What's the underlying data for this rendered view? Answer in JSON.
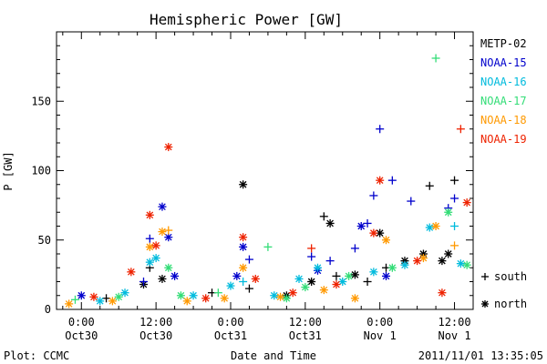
{
  "chart_data": {
    "type": "scatter",
    "title": "Hemispheric Power [GW]",
    "ylabel": "P [GW]",
    "xlabel": "Date and Time",
    "ylim": [
      0,
      200
    ],
    "y_ticks": [
      "0",
      "50",
      "100",
      "150"
    ],
    "x_ticks": [
      {
        "x": 24,
        "line1": "0:00",
        "line2": "Oct30"
      },
      {
        "x": 36,
        "line1": "12:00",
        "line2": "Oct30"
      },
      {
        "x": 48,
        "line1": "0:00",
        "line2": "Oct31"
      },
      {
        "x": 60,
        "line1": "12:00",
        "line2": "Oct31"
      },
      {
        "x": 72,
        "line1": "0:00",
        "line2": "Nov 1"
      },
      {
        "x": 84,
        "line1": "12:00",
        "line2": "Nov 1"
      }
    ],
    "x_unit": "hours since 2011-10-29 00:00",
    "xlim": [
      20,
      87
    ],
    "series": [
      {
        "name": "METP-02",
        "color": "#000000",
        "points": [
          {
            "x": 28,
            "y": 8,
            "m": "south"
          },
          {
            "x": 34,
            "y": 18,
            "m": "north"
          },
          {
            "x": 35,
            "y": 30,
            "m": "south"
          },
          {
            "x": 37,
            "y": 22,
            "m": "north"
          },
          {
            "x": 45,
            "y": 12,
            "m": "south"
          },
          {
            "x": 50,
            "y": 90,
            "m": "north"
          },
          {
            "x": 51,
            "y": 15,
            "m": "south"
          },
          {
            "x": 57,
            "y": 10,
            "m": "north"
          },
          {
            "x": 61,
            "y": 20,
            "m": "north"
          },
          {
            "x": 63,
            "y": 67,
            "m": "south"
          },
          {
            "x": 64,
            "y": 62,
            "m": "north"
          },
          {
            "x": 65,
            "y": 24,
            "m": "south"
          },
          {
            "x": 68,
            "y": 25,
            "m": "north"
          },
          {
            "x": 70,
            "y": 20,
            "m": "south"
          },
          {
            "x": 72,
            "y": 55,
            "m": "north"
          },
          {
            "x": 73,
            "y": 30,
            "m": "south"
          },
          {
            "x": 76,
            "y": 35,
            "m": "north"
          },
          {
            "x": 79,
            "y": 40,
            "m": "north"
          },
          {
            "x": 80,
            "y": 89,
            "m": "south"
          },
          {
            "x": 82,
            "y": 35,
            "m": "north"
          },
          {
            "x": 83,
            "y": 40,
            "m": "north"
          },
          {
            "x": 84,
            "y": 93,
            "m": "south"
          }
        ]
      },
      {
        "name": "NOAA-15",
        "color": "#0000cc",
        "points": [
          {
            "x": 24,
            "y": 10,
            "m": "north"
          },
          {
            "x": 34,
            "y": 20,
            "m": "south"
          },
          {
            "x": 35,
            "y": 51,
            "m": "south"
          },
          {
            "x": 37,
            "y": 74,
            "m": "north"
          },
          {
            "x": 38,
            "y": 52,
            "m": "north"
          },
          {
            "x": 39,
            "y": 24,
            "m": "north"
          },
          {
            "x": 49,
            "y": 24,
            "m": "north"
          },
          {
            "x": 50,
            "y": 45,
            "m": "north"
          },
          {
            "x": 51,
            "y": 36,
            "m": "south"
          },
          {
            "x": 61,
            "y": 38,
            "m": "south"
          },
          {
            "x": 62,
            "y": 28,
            "m": "north"
          },
          {
            "x": 64,
            "y": 35,
            "m": "south"
          },
          {
            "x": 68,
            "y": 44,
            "m": "south"
          },
          {
            "x": 69,
            "y": 60,
            "m": "north"
          },
          {
            "x": 70,
            "y": 62,
            "m": "south"
          },
          {
            "x": 71,
            "y": 82,
            "m": "south"
          },
          {
            "x": 72,
            "y": 130,
            "m": "south"
          },
          {
            "x": 73,
            "y": 24,
            "m": "north"
          },
          {
            "x": 74,
            "y": 93,
            "m": "south"
          },
          {
            "x": 77,
            "y": 78,
            "m": "south"
          },
          {
            "x": 83,
            "y": 73,
            "m": "south"
          },
          {
            "x": 84,
            "y": 80,
            "m": "south"
          }
        ]
      },
      {
        "name": "NOAA-16",
        "color": "#00bbdd",
        "points": [
          {
            "x": 27,
            "y": 6,
            "m": "north"
          },
          {
            "x": 31,
            "y": 12,
            "m": "north"
          },
          {
            "x": 35,
            "y": 34,
            "m": "north"
          },
          {
            "x": 36,
            "y": 37,
            "m": "north"
          },
          {
            "x": 42,
            "y": 10,
            "m": "north"
          },
          {
            "x": 48,
            "y": 17,
            "m": "north"
          },
          {
            "x": 50,
            "y": 20,
            "m": "south"
          },
          {
            "x": 55,
            "y": 10,
            "m": "north"
          },
          {
            "x": 59,
            "y": 22,
            "m": "north"
          },
          {
            "x": 62,
            "y": 30,
            "m": "north"
          },
          {
            "x": 66,
            "y": 20,
            "m": "north"
          },
          {
            "x": 71,
            "y": 27,
            "m": "north"
          },
          {
            "x": 76,
            "y": 32,
            "m": "north"
          },
          {
            "x": 80,
            "y": 59,
            "m": "north"
          },
          {
            "x": 84,
            "y": 60,
            "m": "south"
          },
          {
            "x": 85,
            "y": 33,
            "m": "north"
          }
        ]
      },
      {
        "name": "NOAA-17",
        "color": "#33dd77",
        "points": [
          {
            "x": 23,
            "y": 7,
            "m": "south"
          },
          {
            "x": 30,
            "y": 9,
            "m": "north"
          },
          {
            "x": 38,
            "y": 30,
            "m": "north"
          },
          {
            "x": 40,
            "y": 10,
            "m": "north"
          },
          {
            "x": 46,
            "y": 12,
            "m": "south"
          },
          {
            "x": 54,
            "y": 45,
            "m": "south"
          },
          {
            "x": 57,
            "y": 8,
            "m": "north"
          },
          {
            "x": 60,
            "y": 16,
            "m": "north"
          },
          {
            "x": 67,
            "y": 24,
            "m": "north"
          },
          {
            "x": 74,
            "y": 30,
            "m": "north"
          },
          {
            "x": 81,
            "y": 181,
            "m": "south"
          },
          {
            "x": 83,
            "y": 70,
            "m": "north"
          },
          {
            "x": 86,
            "y": 32,
            "m": "north"
          }
        ]
      },
      {
        "name": "NOAA-18",
        "color": "#ff9900",
        "points": [
          {
            "x": 22,
            "y": 4,
            "m": "north"
          },
          {
            "x": 29,
            "y": 6,
            "m": "north"
          },
          {
            "x": 35,
            "y": 45,
            "m": "north"
          },
          {
            "x": 37,
            "y": 56,
            "m": "north"
          },
          {
            "x": 38,
            "y": 57,
            "m": "south"
          },
          {
            "x": 41,
            "y": 6,
            "m": "north"
          },
          {
            "x": 47,
            "y": 8,
            "m": "north"
          },
          {
            "x": 50,
            "y": 30,
            "m": "north"
          },
          {
            "x": 56,
            "y": 9,
            "m": "north"
          },
          {
            "x": 63,
            "y": 14,
            "m": "north"
          },
          {
            "x": 68,
            "y": 8,
            "m": "north"
          },
          {
            "x": 73,
            "y": 50,
            "m": "north"
          },
          {
            "x": 79,
            "y": 37,
            "m": "north"
          },
          {
            "x": 81,
            "y": 60,
            "m": "north"
          },
          {
            "x": 84,
            "y": 46,
            "m": "south"
          }
        ]
      },
      {
        "name": "NOAA-19",
        "color": "#ee2200",
        "points": [
          {
            "x": 26,
            "y": 9,
            "m": "north"
          },
          {
            "x": 32,
            "y": 27,
            "m": "north"
          },
          {
            "x": 35,
            "y": 68,
            "m": "north"
          },
          {
            "x": 36,
            "y": 46,
            "m": "north"
          },
          {
            "x": 38,
            "y": 117,
            "m": "north"
          },
          {
            "x": 44,
            "y": 8,
            "m": "north"
          },
          {
            "x": 50,
            "y": 52,
            "m": "north"
          },
          {
            "x": 52,
            "y": 22,
            "m": "north"
          },
          {
            "x": 58,
            "y": 12,
            "m": "north"
          },
          {
            "x": 61,
            "y": 44,
            "m": "south"
          },
          {
            "x": 65,
            "y": 18,
            "m": "north"
          },
          {
            "x": 71,
            "y": 55,
            "m": "north"
          },
          {
            "x": 72,
            "y": 93,
            "m": "north"
          },
          {
            "x": 78,
            "y": 35,
            "m": "north"
          },
          {
            "x": 82,
            "y": 12,
            "m": "north"
          },
          {
            "x": 85,
            "y": 130,
            "m": "south"
          },
          {
            "x": 86,
            "y": 77,
            "m": "north"
          }
        ]
      }
    ],
    "marker_legend": [
      {
        "symbol": "+",
        "label": "south"
      },
      {
        "symbol": "*",
        "label": "north"
      }
    ]
  },
  "footer": {
    "left": "Plot: CCMC",
    "timestamp": "2011/11/01  13:35:05"
  }
}
